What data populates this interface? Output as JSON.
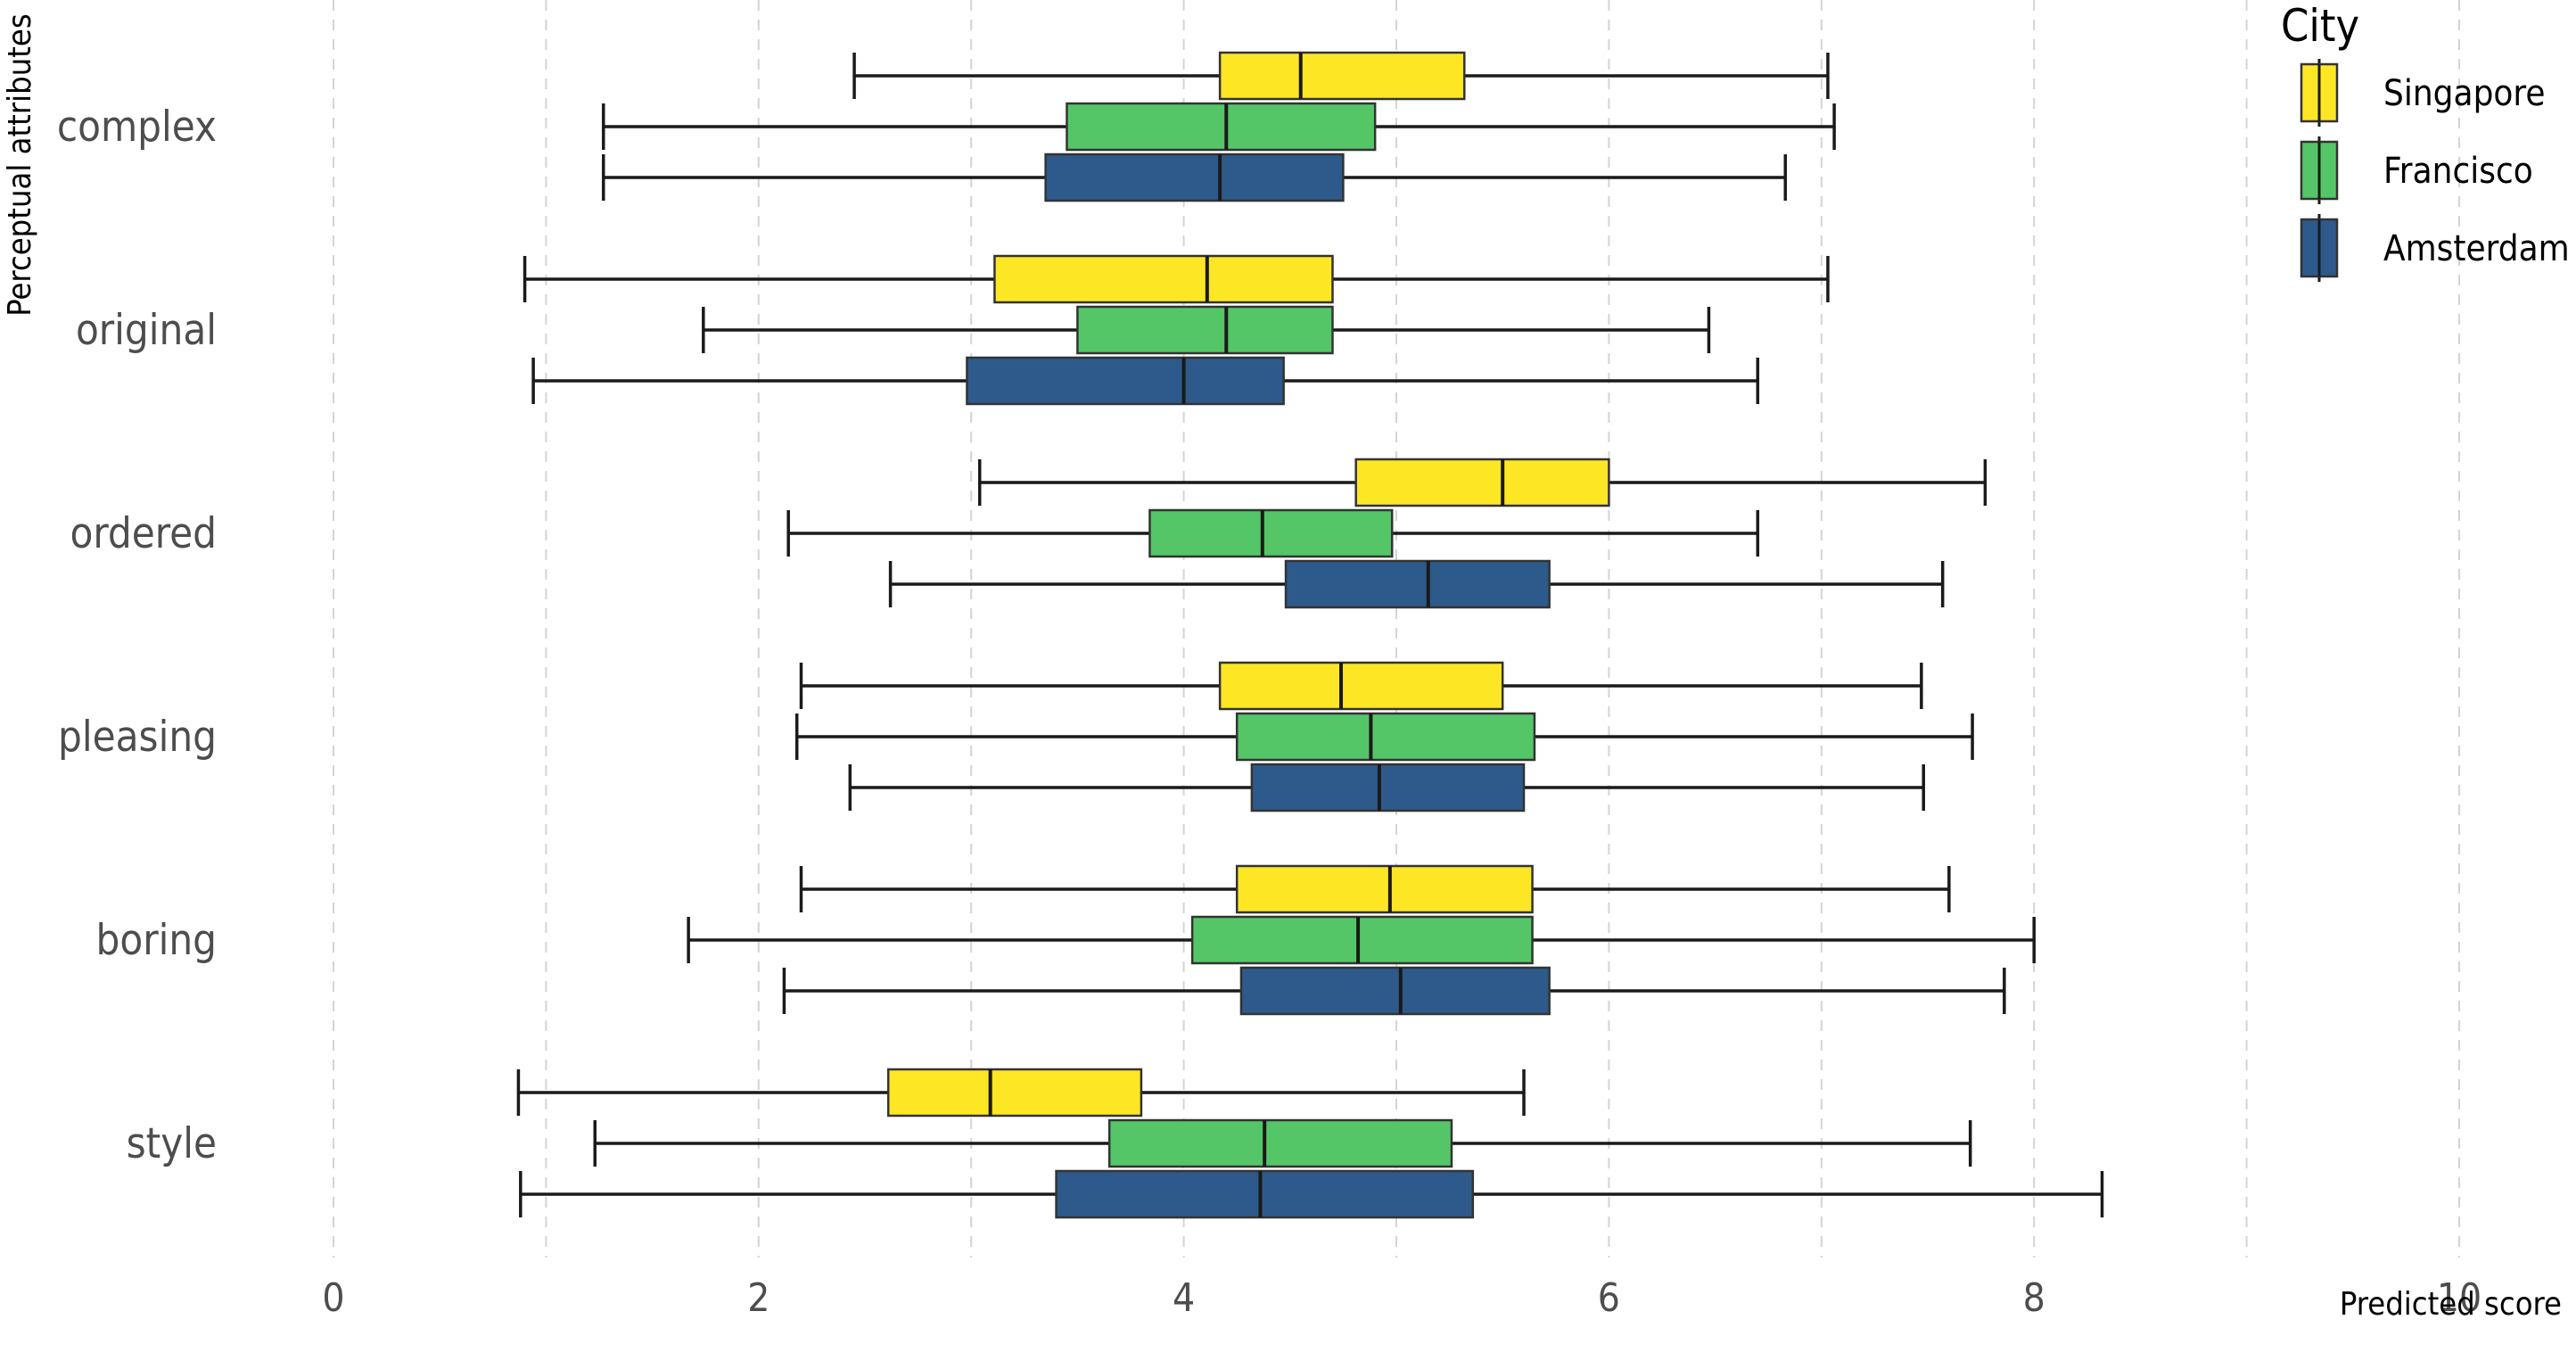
{
  "chart_data": {
    "type": "boxplot",
    "orientation": "horizontal",
    "xlabel": "Predicted score",
    "ylabel": "Perceptual attributes",
    "xlim": [
      0,
      10
    ],
    "x_ticks": [
      "0",
      "2",
      "4",
      "6",
      "8",
      "10"
    ],
    "grid": "vertical dashed",
    "legend": {
      "title": "City",
      "position": "top-right"
    },
    "categories": [
      "complex",
      "original",
      "ordered",
      "pleasing",
      "boring",
      "style"
    ],
    "series": [
      {
        "name": "Singapore",
        "color": "#FDE725",
        "boxes": [
          {
            "min": 2.45,
            "q1": 4.17,
            "median": 4.55,
            "q3": 5.32,
            "max": 7.03
          },
          {
            "min": 0.9,
            "q1": 3.11,
            "median": 4.11,
            "q3": 4.7,
            "max": 7.03
          },
          {
            "min": 3.04,
            "q1": 4.81,
            "median": 5.5,
            "q3": 6.0,
            "max": 7.77
          },
          {
            "min": 2.2,
            "q1": 4.17,
            "median": 4.74,
            "q3": 5.5,
            "max": 7.47
          },
          {
            "min": 2.2,
            "q1": 4.25,
            "median": 4.97,
            "q3": 5.64,
            "max": 7.6
          },
          {
            "min": 0.87,
            "q1": 2.61,
            "median": 3.09,
            "q3": 3.8,
            "max": 5.6
          }
        ]
      },
      {
        "name": "Francisco",
        "color": "#55C667",
        "boxes": [
          {
            "min": 1.27,
            "q1": 3.45,
            "median": 4.2,
            "q3": 4.9,
            "max": 7.06
          },
          {
            "min": 1.74,
            "q1": 3.5,
            "median": 4.2,
            "q3": 4.7,
            "max": 6.47
          },
          {
            "min": 2.14,
            "q1": 3.84,
            "median": 4.37,
            "q3": 4.98,
            "max": 6.7
          },
          {
            "min": 2.18,
            "q1": 4.25,
            "median": 4.88,
            "q3": 5.65,
            "max": 7.71
          },
          {
            "min": 1.67,
            "q1": 4.04,
            "median": 4.82,
            "q3": 5.64,
            "max": 8.0
          },
          {
            "min": 1.23,
            "q1": 3.65,
            "median": 4.38,
            "q3": 5.26,
            "max": 7.7
          }
        ]
      },
      {
        "name": "Amsterdam",
        "color": "#2D5A8A",
        "boxes": [
          {
            "min": 1.27,
            "q1": 3.35,
            "median": 4.17,
            "q3": 4.75,
            "max": 6.83
          },
          {
            "min": 0.94,
            "q1": 2.98,
            "median": 4.0,
            "q3": 4.47,
            "max": 6.7
          },
          {
            "min": 2.62,
            "q1": 4.48,
            "median": 5.15,
            "q3": 5.72,
            "max": 7.57
          },
          {
            "min": 2.43,
            "q1": 4.32,
            "median": 4.92,
            "q3": 5.6,
            "max": 7.48
          },
          {
            "min": 2.12,
            "q1": 4.27,
            "median": 5.02,
            "q3": 5.72,
            "max": 7.86
          },
          {
            "min": 0.88,
            "q1": 3.4,
            "median": 4.36,
            "q3": 5.36,
            "max": 8.32
          }
        ]
      }
    ]
  }
}
